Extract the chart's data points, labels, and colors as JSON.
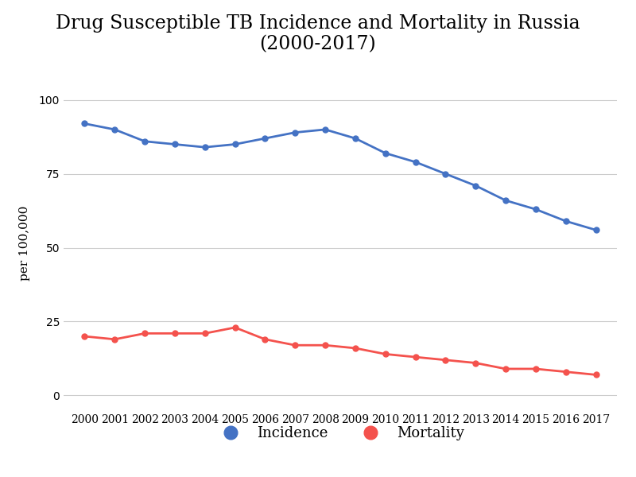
{
  "title": "Drug Susceptible TB Incidence and Mortality in Russia\n(2000-2017)",
  "ylabel": "per 100,000",
  "years": [
    2000,
    2001,
    2002,
    2003,
    2004,
    2005,
    2006,
    2007,
    2008,
    2009,
    2010,
    2011,
    2012,
    2013,
    2014,
    2015,
    2016,
    2017
  ],
  "incidence": [
    92,
    90,
    86,
    85,
    84,
    85,
    87,
    89,
    90,
    87,
    82,
    79,
    75,
    71,
    66,
    63,
    59,
    56
  ],
  "mortality": [
    20,
    19,
    21,
    21,
    21,
    23,
    19,
    17,
    17,
    16,
    14,
    13,
    12,
    11,
    9,
    9,
    8,
    7
  ],
  "incidence_color": "#4472C4",
  "mortality_color": "#F4524D",
  "grid_color": "#cccccc",
  "background_color": "#ffffff",
  "title_fontsize": 17,
  "axis_fontsize": 11,
  "tick_fontsize": 10,
  "legend_fontsize": 13,
  "line_width": 2.0,
  "marker": "o",
  "marker_size": 5,
  "ylim": [
    -5,
    108
  ],
  "yticks": [
    0,
    25,
    50,
    75,
    100
  ],
  "xlim": [
    1999.3,
    2017.7
  ]
}
